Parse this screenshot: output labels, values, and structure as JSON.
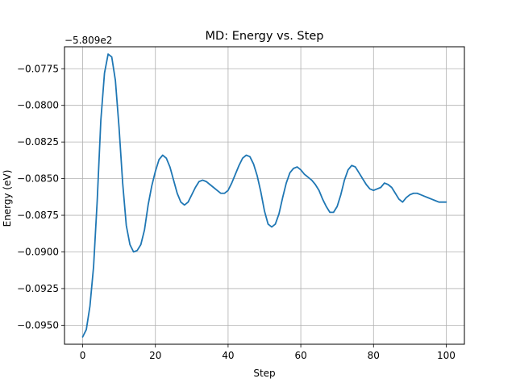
{
  "chart_data": {
    "type": "line",
    "title": "MD: Energy vs. Step",
    "xlabel": "Step",
    "ylabel": "Energy (eV)",
    "offset_text": "−5.809e2",
    "y_offset": -580.9,
    "xlim": [
      -5,
      105
    ],
    "ylim": [
      -0.0963,
      -0.076
    ],
    "grid": true,
    "x_ticks": [
      0,
      20,
      40,
      60,
      80,
      100
    ],
    "x_tick_labels": [
      "0",
      "20",
      "40",
      "60",
      "80",
      "100"
    ],
    "y_ticks": [
      -0.095,
      -0.0925,
      -0.09,
      -0.0875,
      -0.085,
      -0.0825,
      -0.08,
      -0.0775
    ],
    "y_tick_labels": [
      "−0.0950",
      "−0.0925",
      "−0.0900",
      "−0.0875",
      "−0.0850",
      "−0.0825",
      "−0.0800",
      "−0.0775"
    ],
    "series": [
      {
        "color": "#1f77b4",
        "x": [
          0,
          1,
          2,
          3,
          4,
          5,
          6,
          7,
          8,
          9,
          10,
          11,
          12,
          13,
          14,
          15,
          16,
          17,
          18,
          19,
          20,
          21,
          22,
          23,
          24,
          25,
          26,
          27,
          28,
          29,
          30,
          31,
          32,
          33,
          34,
          35,
          36,
          37,
          38,
          39,
          40,
          41,
          42,
          43,
          44,
          45,
          46,
          47,
          48,
          49,
          50,
          51,
          52,
          53,
          54,
          55,
          56,
          57,
          58,
          59,
          60,
          61,
          62,
          63,
          64,
          65,
          66,
          67,
          68,
          69,
          70,
          71,
          72,
          73,
          74,
          75,
          76,
          77,
          78,
          79,
          80,
          81,
          82,
          83,
          84,
          85,
          86,
          87,
          88,
          89,
          90,
          91,
          92,
          93,
          94,
          95,
          96,
          97,
          98,
          99,
          100
        ],
        "values": [
          -0.0958,
          -0.0953,
          -0.0937,
          -0.091,
          -0.0865,
          -0.081,
          -0.0778,
          -0.0765,
          -0.0767,
          -0.0783,
          -0.0815,
          -0.0853,
          -0.0882,
          -0.0895,
          -0.09,
          -0.0899,
          -0.0895,
          -0.0885,
          -0.0868,
          -0.0855,
          -0.0845,
          -0.0837,
          -0.0834,
          -0.0836,
          -0.0842,
          -0.0851,
          -0.086,
          -0.0866,
          -0.0868,
          -0.0866,
          -0.0861,
          -0.0856,
          -0.0852,
          -0.0851,
          -0.0852,
          -0.0854,
          -0.0856,
          -0.0858,
          -0.086,
          -0.086,
          -0.0858,
          -0.0853,
          -0.0847,
          -0.0841,
          -0.0836,
          -0.0834,
          -0.0835,
          -0.084,
          -0.0848,
          -0.0859,
          -0.0872,
          -0.0881,
          -0.0883,
          -0.0881,
          -0.0874,
          -0.0863,
          -0.0853,
          -0.0846,
          -0.0843,
          -0.0842,
          -0.0844,
          -0.0847,
          -0.0849,
          -0.0851,
          -0.0854,
          -0.0858,
          -0.0864,
          -0.0869,
          -0.0873,
          -0.0873,
          -0.0869,
          -0.0861,
          -0.0851,
          -0.0844,
          -0.0841,
          -0.0842,
          -0.0846,
          -0.085,
          -0.0854,
          -0.0857,
          -0.0858,
          -0.0857,
          -0.0856,
          -0.0853,
          -0.0854,
          -0.0856,
          -0.086,
          -0.0864,
          -0.0866,
          -0.0863,
          -0.0861,
          -0.086,
          -0.086,
          -0.0861,
          -0.0862,
          -0.0863,
          -0.0864,
          -0.0865,
          -0.0866,
          -0.0866,
          -0.0866
        ]
      }
    ]
  }
}
